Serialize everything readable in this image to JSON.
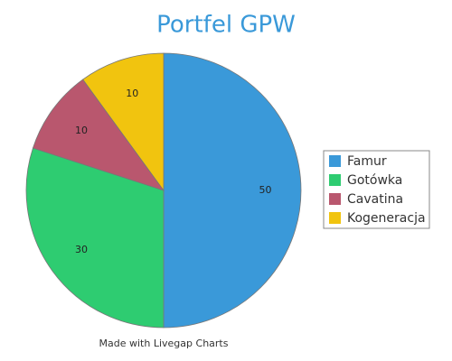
{
  "chart_data": {
    "type": "pie",
    "title": "Portfel GPW",
    "categories": [
      "Famur",
      "Gotówka",
      "Cavatina",
      "Kogeneracja"
    ],
    "values": [
      50,
      30,
      10,
      10
    ],
    "colors": [
      "#3a99d9",
      "#2ecc71",
      "#b9576e",
      "#f1c40f"
    ],
    "legend": "right",
    "credit": "Made with Livegap Charts"
  }
}
